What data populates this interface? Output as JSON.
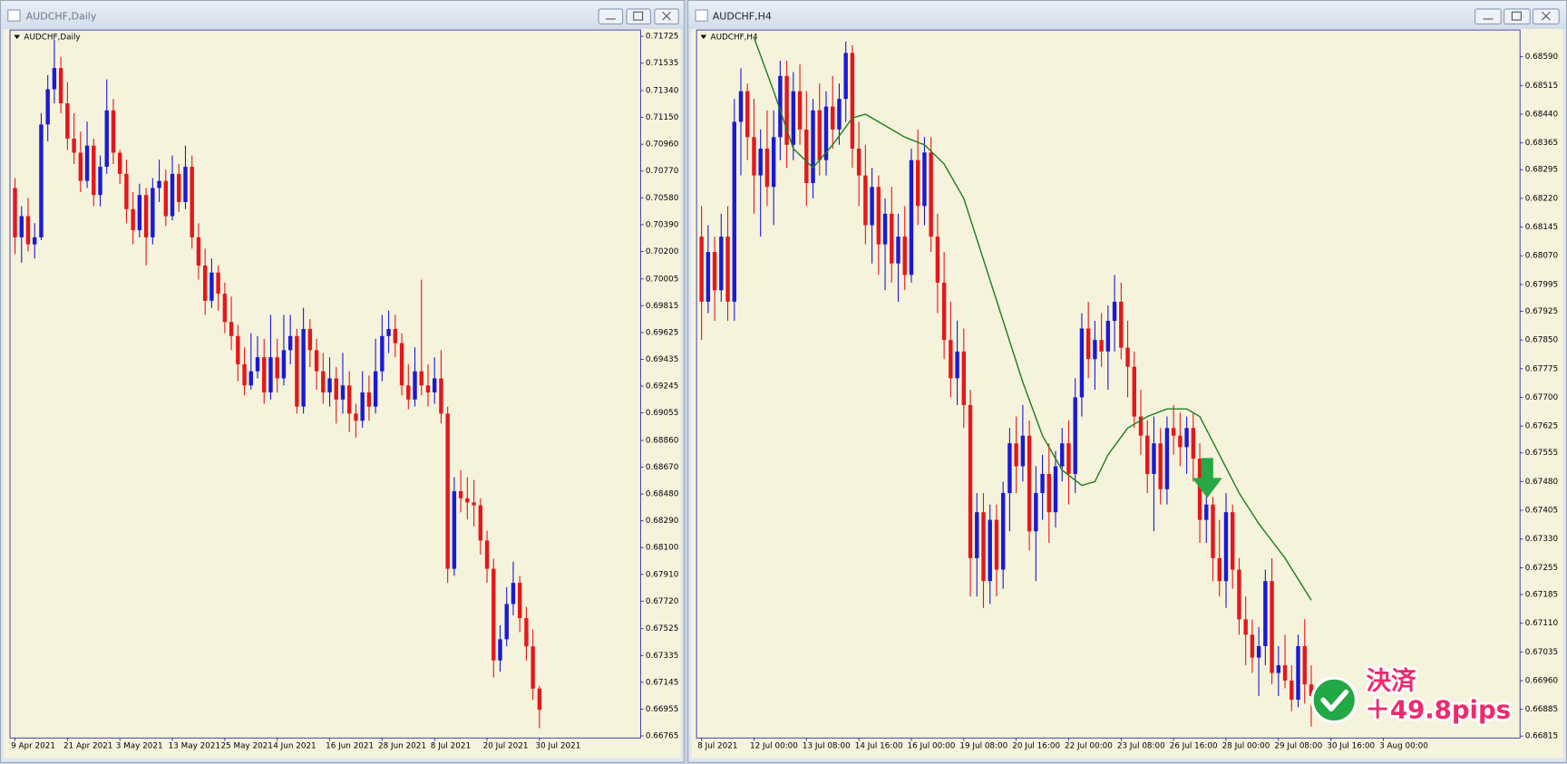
{
  "chart_data": [
    {
      "type": "candlestick",
      "window_title": "AUDCHF,Daily",
      "title": "AUDCHF,Daily",
      "bull_color": "#1a1ad6",
      "bear_color": "#e5171b",
      "background": "#f5f3dc",
      "categories": [
        "9 Apr 2021",
        null,
        null,
        null,
        null,
        null,
        null,
        null,
        "21 Apr 2021",
        null,
        null,
        null,
        null,
        null,
        null,
        null,
        "3 May 2021",
        null,
        null,
        null,
        null,
        null,
        null,
        null,
        "13 May 2021",
        null,
        null,
        null,
        null,
        null,
        null,
        null,
        "25 May 2021",
        null,
        null,
        null,
        null,
        null,
        null,
        null,
        "4 Jun 2021",
        null,
        null,
        null,
        null,
        null,
        null,
        null,
        "16 Jun 2021",
        null,
        null,
        null,
        null,
        null,
        null,
        null,
        "28 Jun 2021",
        null,
        null,
        null,
        null,
        null,
        null,
        null,
        "8 Jul 2021",
        null,
        null,
        null,
        null,
        null,
        null,
        null,
        "20 Jul 2021",
        null,
        null,
        null,
        null,
        null,
        null,
        null,
        "30 Jul 2021"
      ],
      "open": [
        0.7065,
        0.703,
        0.7045,
        0.7025,
        0.703,
        0.711,
        0.7135,
        0.715,
        0.7125,
        0.71,
        0.709,
        0.707,
        0.7095,
        0.706,
        0.708,
        0.712,
        0.709,
        0.7075,
        0.705,
        0.7035,
        0.706,
        0.703,
        0.7065,
        0.707,
        0.7045,
        0.7075,
        0.7055,
        0.708,
        0.703,
        0.701,
        0.6985,
        0.7005,
        0.699,
        0.697,
        0.696,
        0.694,
        0.6925,
        0.6935,
        0.6945,
        0.692,
        0.6945,
        0.693,
        0.695,
        0.696,
        0.691,
        0.6965,
        0.695,
        0.6935,
        0.692,
        0.693,
        0.6915,
        0.6925,
        0.6905,
        0.69,
        0.692,
        0.691,
        0.6935,
        0.696,
        0.6965,
        0.6955,
        0.6925,
        0.6915,
        0.6935,
        0.6925,
        0.692,
        0.693,
        0.6905,
        0.6795,
        0.685,
        0.6845,
        0.6842,
        0.684,
        0.6815,
        0.6795,
        0.673,
        0.6745,
        0.677,
        0.6785,
        0.676,
        0.674,
        0.671
      ],
      "high": [
        0.7072,
        0.7052,
        0.7058,
        0.704,
        0.7118,
        0.7145,
        0.717,
        0.7158,
        0.714,
        0.7118,
        0.7105,
        0.7112,
        0.71,
        0.7088,
        0.7142,
        0.7128,
        0.7092,
        0.7085,
        0.7062,
        0.7068,
        0.7065,
        0.7072,
        0.7085,
        0.7078,
        0.7088,
        0.7082,
        0.7095,
        0.7088,
        0.704,
        0.7022,
        0.7015,
        0.701,
        0.6998,
        0.6988,
        0.6968,
        0.6952,
        0.6962,
        0.696,
        0.6958,
        0.6975,
        0.6958,
        0.6975,
        0.6975,
        0.6965,
        0.698,
        0.6972,
        0.6958,
        0.6948,
        0.6945,
        0.6938,
        0.6948,
        0.6935,
        0.6912,
        0.6935,
        0.6932,
        0.6958,
        0.6975,
        0.6978,
        0.6975,
        0.6962,
        0.694,
        0.6952,
        0.7,
        0.694,
        0.6945,
        0.695,
        0.691,
        0.686,
        0.6865,
        0.686,
        0.6858,
        0.6845,
        0.6822,
        0.6802,
        0.6755,
        0.6782,
        0.68,
        0.679,
        0.6768,
        0.6752,
        0.6712
      ],
      "low": [
        0.7018,
        0.7012,
        0.702,
        0.7015,
        0.7028,
        0.7098,
        0.7125,
        0.7118,
        0.7092,
        0.7082,
        0.7062,
        0.7065,
        0.7052,
        0.7052,
        0.7075,
        0.7082,
        0.7068,
        0.704,
        0.7025,
        0.703,
        0.701,
        0.7025,
        0.7055,
        0.7038,
        0.7042,
        0.7048,
        0.705,
        0.7022,
        0.7,
        0.6975,
        0.698,
        0.6978,
        0.6962,
        0.695,
        0.6928,
        0.6918,
        0.6922,
        0.693,
        0.6912,
        0.6915,
        0.692,
        0.6925,
        0.694,
        0.6905,
        0.6905,
        0.6938,
        0.6922,
        0.6912,
        0.691,
        0.6898,
        0.6905,
        0.6892,
        0.6888,
        0.6895,
        0.69,
        0.6905,
        0.6928,
        0.6948,
        0.6945,
        0.6918,
        0.6908,
        0.691,
        0.6918,
        0.691,
        0.6912,
        0.6898,
        0.6785,
        0.679,
        0.6835,
        0.683,
        0.6825,
        0.6805,
        0.6785,
        0.6718,
        0.6722,
        0.674,
        0.6762,
        0.675,
        0.673,
        0.6702,
        0.6682
      ],
      "close": [
        0.703,
        0.7045,
        0.7025,
        0.703,
        0.711,
        0.7135,
        0.715,
        0.7125,
        0.71,
        0.709,
        0.707,
        0.7095,
        0.706,
        0.708,
        0.712,
        0.709,
        0.7075,
        0.705,
        0.7035,
        0.706,
        0.703,
        0.7065,
        0.707,
        0.7045,
        0.7075,
        0.7055,
        0.708,
        0.703,
        0.701,
        0.6985,
        0.7005,
        0.699,
        0.697,
        0.696,
        0.694,
        0.6925,
        0.6935,
        0.6945,
        0.692,
        0.6945,
        0.693,
        0.695,
        0.696,
        0.691,
        0.6965,
        0.695,
        0.6935,
        0.692,
        0.693,
        0.6915,
        0.6925,
        0.6905,
        0.69,
        0.692,
        0.691,
        0.6935,
        0.696,
        0.6965,
        0.6955,
        0.6925,
        0.6915,
        0.6935,
        0.6925,
        0.692,
        0.693,
        0.6905,
        0.6795,
        0.685,
        0.6845,
        0.6842,
        0.684,
        0.6815,
        0.6795,
        0.673,
        0.6745,
        0.677,
        0.6785,
        0.676,
        0.674,
        0.671,
        0.6695
      ],
      "ylim": [
        0.6675,
        0.7177
      ],
      "yticks": [
        0.71725,
        0.71535,
        {
          "value": 0.7134,
          "label": "0.71340"
        },
        {
          "value": 0.7115,
          "label": "0.71150"
        },
        {
          "value": 0.7096,
          "label": "0.70960"
        },
        {
          "value": 0.7077,
          "label": "0.70770"
        },
        {
          "value": 0.7058,
          "label": "0.70580"
        },
        {
          "value": 0.7039,
          "label": "0.70390"
        },
        {
          "value": 0.702,
          "label": "0.70200"
        },
        0.70005,
        0.69815,
        0.69625,
        0.69435,
        0.69245,
        0.69055,
        {
          "value": 0.6886,
          "label": "0.68860"
        },
        {
          "value": 0.6867,
          "label": "0.68670"
        },
        {
          "value": 0.6848,
          "label": "0.68480"
        },
        {
          "value": 0.6829,
          "label": "0.68290"
        },
        {
          "value": 0.681,
          "label": "0.68100"
        },
        {
          "value": 0.6791,
          "label": "0.67910"
        },
        {
          "value": 0.6772,
          "label": "0.67720"
        },
        0.67525,
        0.67335,
        0.67145,
        0.66955,
        0.66765
      ]
    },
    {
      "type": "candlestick",
      "window_title": "AUDCHF,H4",
      "title": "AUDCHF,H4",
      "bull_color": "#1a1ad6",
      "bear_color": "#e5171b",
      "background": "#f5f3dc",
      "categories": [
        "8 Jul 2021",
        null,
        null,
        null,
        null,
        null,
        null,
        null,
        "12 Jul 00:00",
        null,
        null,
        null,
        null,
        null,
        null,
        null,
        "13 Jul 08:00",
        null,
        null,
        null,
        null,
        null,
        null,
        null,
        "14 Jul 16:00",
        null,
        null,
        null,
        null,
        null,
        null,
        null,
        "16 Jul 00:00",
        null,
        null,
        null,
        null,
        null,
        null,
        null,
        "19 Jul 08:00",
        null,
        null,
        null,
        null,
        null,
        null,
        null,
        "20 Jul 16:00",
        null,
        null,
        null,
        null,
        null,
        null,
        null,
        "22 Jul 00:00",
        null,
        null,
        null,
        null,
        null,
        null,
        null,
        "23 Jul 08:00",
        null,
        null,
        null,
        null,
        null,
        null,
        null,
        "26 Jul 16:00",
        null,
        null,
        null,
        null,
        null,
        null,
        null,
        "28 Jul 00:00",
        null,
        null,
        null,
        null,
        null,
        null,
        null,
        "29 Jul 08:00",
        null,
        null,
        null,
        null,
        null,
        null,
        null,
        "30 Jul 16:00",
        null,
        null,
        null,
        null,
        null,
        null,
        null,
        "3 Aug 00:00"
      ],
      "open": [
        0.6812,
        0.6795,
        0.6808,
        0.6798,
        0.6812,
        0.6795,
        0.6842,
        0.685,
        0.6838,
        0.6828,
        0.6835,
        0.6825,
        0.6838,
        0.6854,
        0.6836,
        0.685,
        0.684,
        0.6826,
        0.6845,
        0.6832,
        0.6846,
        0.684,
        0.6848,
        0.686,
        0.6835,
        0.6828,
        0.6815,
        0.6825,
        0.681,
        0.6818,
        0.6805,
        0.6812,
        0.6802,
        0.6832,
        0.682,
        0.6834,
        0.6812,
        0.68,
        0.6785,
        0.6775,
        0.6782,
        0.6768,
        0.6728,
        0.674,
        0.6722,
        0.6738,
        0.6725,
        0.6745,
        0.6758,
        0.6752,
        0.676,
        0.6735,
        0.6745,
        0.675,
        0.674,
        0.6752,
        0.6758,
        0.675,
        0.677,
        0.6788,
        0.678,
        0.6785,
        0.6782,
        0.679,
        0.6795,
        0.6783,
        0.6778,
        0.6765,
        0.676,
        0.675,
        0.6758,
        0.6746,
        0.6762,
        0.676,
        0.6757,
        0.6762,
        0.6754,
        0.6738,
        0.6742,
        0.6728,
        0.6722,
        0.674,
        0.6725,
        0.6712,
        0.6708,
        0.6702,
        0.6705,
        0.6722,
        0.6698,
        0.67,
        0.6696,
        0.6691,
        0.6705,
        0.6695,
        null,
        null,
        null,
        null,
        null,
        null,
        null,
        null,
        null,
        null,
        null
      ],
      "high": [
        0.682,
        0.6815,
        0.6812,
        0.6818,
        0.682,
        0.6848,
        0.6856,
        0.6852,
        0.6848,
        0.684,
        0.6845,
        0.6845,
        0.6858,
        0.6858,
        0.6855,
        0.6857,
        0.685,
        0.6848,
        0.6852,
        0.685,
        0.6854,
        0.6852,
        0.6863,
        0.6862,
        0.6842,
        0.6836,
        0.683,
        0.6828,
        0.6822,
        0.6825,
        0.6818,
        0.682,
        0.6835,
        0.684,
        0.6838,
        0.6838,
        0.6818,
        0.6808,
        0.6795,
        0.679,
        0.6788,
        0.6772,
        0.6745,
        0.6745,
        0.6742,
        0.6742,
        0.6748,
        0.6762,
        0.6765,
        0.6768,
        0.6764,
        0.6752,
        0.6755,
        0.6758,
        0.6756,
        0.6762,
        0.6764,
        0.6775,
        0.6792,
        0.6795,
        0.679,
        0.6792,
        0.6794,
        0.6802,
        0.68,
        0.679,
        0.6782,
        0.6772,
        0.6764,
        0.6765,
        0.6762,
        0.6765,
        0.6768,
        0.6766,
        0.6765,
        0.6766,
        0.6758,
        0.6745,
        0.6744,
        0.6738,
        0.6745,
        0.6742,
        0.6728,
        0.6718,
        0.6712,
        0.671,
        0.6725,
        0.6728,
        0.6705,
        0.6708,
        0.67,
        0.6708,
        0.6712,
        0.67,
        null,
        null,
        null,
        null,
        null,
        null,
        null,
        null,
        null,
        null,
        null
      ],
      "low": [
        0.6785,
        0.6792,
        0.679,
        0.6795,
        0.679,
        0.679,
        0.6828,
        0.6832,
        0.6818,
        0.6812,
        0.682,
        0.6815,
        0.6832,
        0.683,
        0.6832,
        0.6836,
        0.682,
        0.6822,
        0.6828,
        0.6828,
        0.6835,
        0.6836,
        0.6842,
        0.683,
        0.682,
        0.681,
        0.6805,
        0.6802,
        0.6798,
        0.68,
        0.6795,
        0.6798,
        0.68,
        0.6815,
        0.6815,
        0.6808,
        0.6792,
        0.678,
        0.677,
        0.6768,
        0.6762,
        0.6718,
        0.6718,
        0.6715,
        0.6716,
        0.6718,
        0.672,
        0.6735,
        0.6745,
        0.6748,
        0.673,
        0.6722,
        0.6738,
        0.6732,
        0.6736,
        0.6748,
        0.6742,
        0.6745,
        0.6765,
        0.6775,
        0.6772,
        0.6778,
        0.6772,
        0.6782,
        0.678,
        0.677,
        0.6762,
        0.6755,
        0.6745,
        0.6735,
        0.6742,
        0.6742,
        0.6755,
        0.6752,
        0.675,
        0.6748,
        0.6732,
        0.6732,
        0.6722,
        0.6718,
        0.6715,
        0.672,
        0.6708,
        0.67,
        0.6698,
        0.6692,
        0.67,
        0.6695,
        0.6692,
        0.6694,
        0.6688,
        0.6689,
        0.669,
        0.6684,
        null,
        null,
        null,
        null,
        null,
        null,
        null,
        null,
        null,
        null,
        null
      ],
      "close": [
        0.6795,
        0.6808,
        0.6798,
        0.6812,
        0.6795,
        0.6842,
        0.685,
        0.6838,
        0.6828,
        0.6835,
        0.6825,
        0.6838,
        0.6854,
        0.6836,
        0.685,
        0.684,
        0.6826,
        0.6845,
        0.6832,
        0.6846,
        0.684,
        0.6848,
        0.686,
        0.6835,
        0.6828,
        0.6815,
        0.6825,
        0.681,
        0.6818,
        0.6805,
        0.6812,
        0.6802,
        0.6832,
        0.682,
        0.6834,
        0.6812,
        0.68,
        0.6785,
        0.6775,
        0.6782,
        0.6768,
        0.6728,
        0.674,
        0.6722,
        0.6738,
        0.6725,
        0.6745,
        0.6758,
        0.6752,
        0.676,
        0.6735,
        0.6745,
        0.675,
        0.674,
        0.6752,
        0.6758,
        0.675,
        0.677,
        0.6788,
        0.678,
        0.6785,
        0.6782,
        0.679,
        0.6795,
        0.6783,
        0.6778,
        0.6765,
        0.676,
        0.675,
        0.6758,
        0.6746,
        0.6762,
        0.676,
        0.6757,
        0.6762,
        0.6754,
        0.6738,
        0.6742,
        0.6728,
        0.6722,
        0.674,
        0.6725,
        0.6712,
        0.6708,
        0.6702,
        0.6705,
        0.6722,
        0.6698,
        0.67,
        0.6696,
        0.6691,
        0.6705,
        0.6695,
        0.6692,
        null,
        null,
        null,
        null,
        null,
        null,
        null,
        null,
        null,
        null,
        null
      ],
      "ma": {
        "color": "#1f7f1f",
        "x": [
          8,
          11,
          14,
          17,
          20,
          23,
          25,
          28,
          31,
          34,
          37,
          40,
          43,
          46,
          49,
          52,
          55,
          58,
          60,
          62,
          65,
          68,
          71,
          74,
          76,
          79,
          82,
          85,
          89,
          93
        ],
        "values": [
          0.6864,
          0.685,
          0.6835,
          0.683,
          0.6836,
          0.6843,
          0.6844,
          0.6841,
          0.6838,
          0.6836,
          0.6831,
          0.6822,
          0.6806,
          0.679,
          0.6774,
          0.676,
          0.6751,
          0.6747,
          0.6748,
          0.6755,
          0.6762,
          0.6765,
          0.6767,
          0.6767,
          0.6765,
          0.6755,
          0.6745,
          0.6737,
          0.6728,
          0.6717
        ]
      },
      "annotations": [
        "決済",
        "＋49.8pips"
      ],
      "ylim": [
        0.6681,
        0.6866
      ],
      "yticks": [
        {
          "value": 0.6859,
          "label": "0.68590"
        },
        0.68515,
        {
          "value": 0.6844,
          "label": "0.68440"
        },
        0.68365,
        0.68295,
        {
          "value": 0.6822,
          "label": "0.68220"
        },
        0.68145,
        {
          "value": 0.6807,
          "label": "0.68070"
        },
        0.67995,
        0.67925,
        {
          "value": 0.6785,
          "label": "0.67850"
        },
        0.67775,
        {
          "value": 0.677,
          "label": "0.67700"
        },
        0.67625,
        0.67555,
        {
          "value": 0.6748,
          "label": "0.67480"
        },
        0.67405,
        {
          "value": 0.6733,
          "label": "0.67330"
        },
        0.67255,
        0.67185,
        {
          "value": 0.6711,
          "label": "0.67110"
        },
        0.67035,
        {
          "value": 0.6696,
          "label": "0.66960"
        },
        0.66885,
        0.66815
      ]
    }
  ]
}
